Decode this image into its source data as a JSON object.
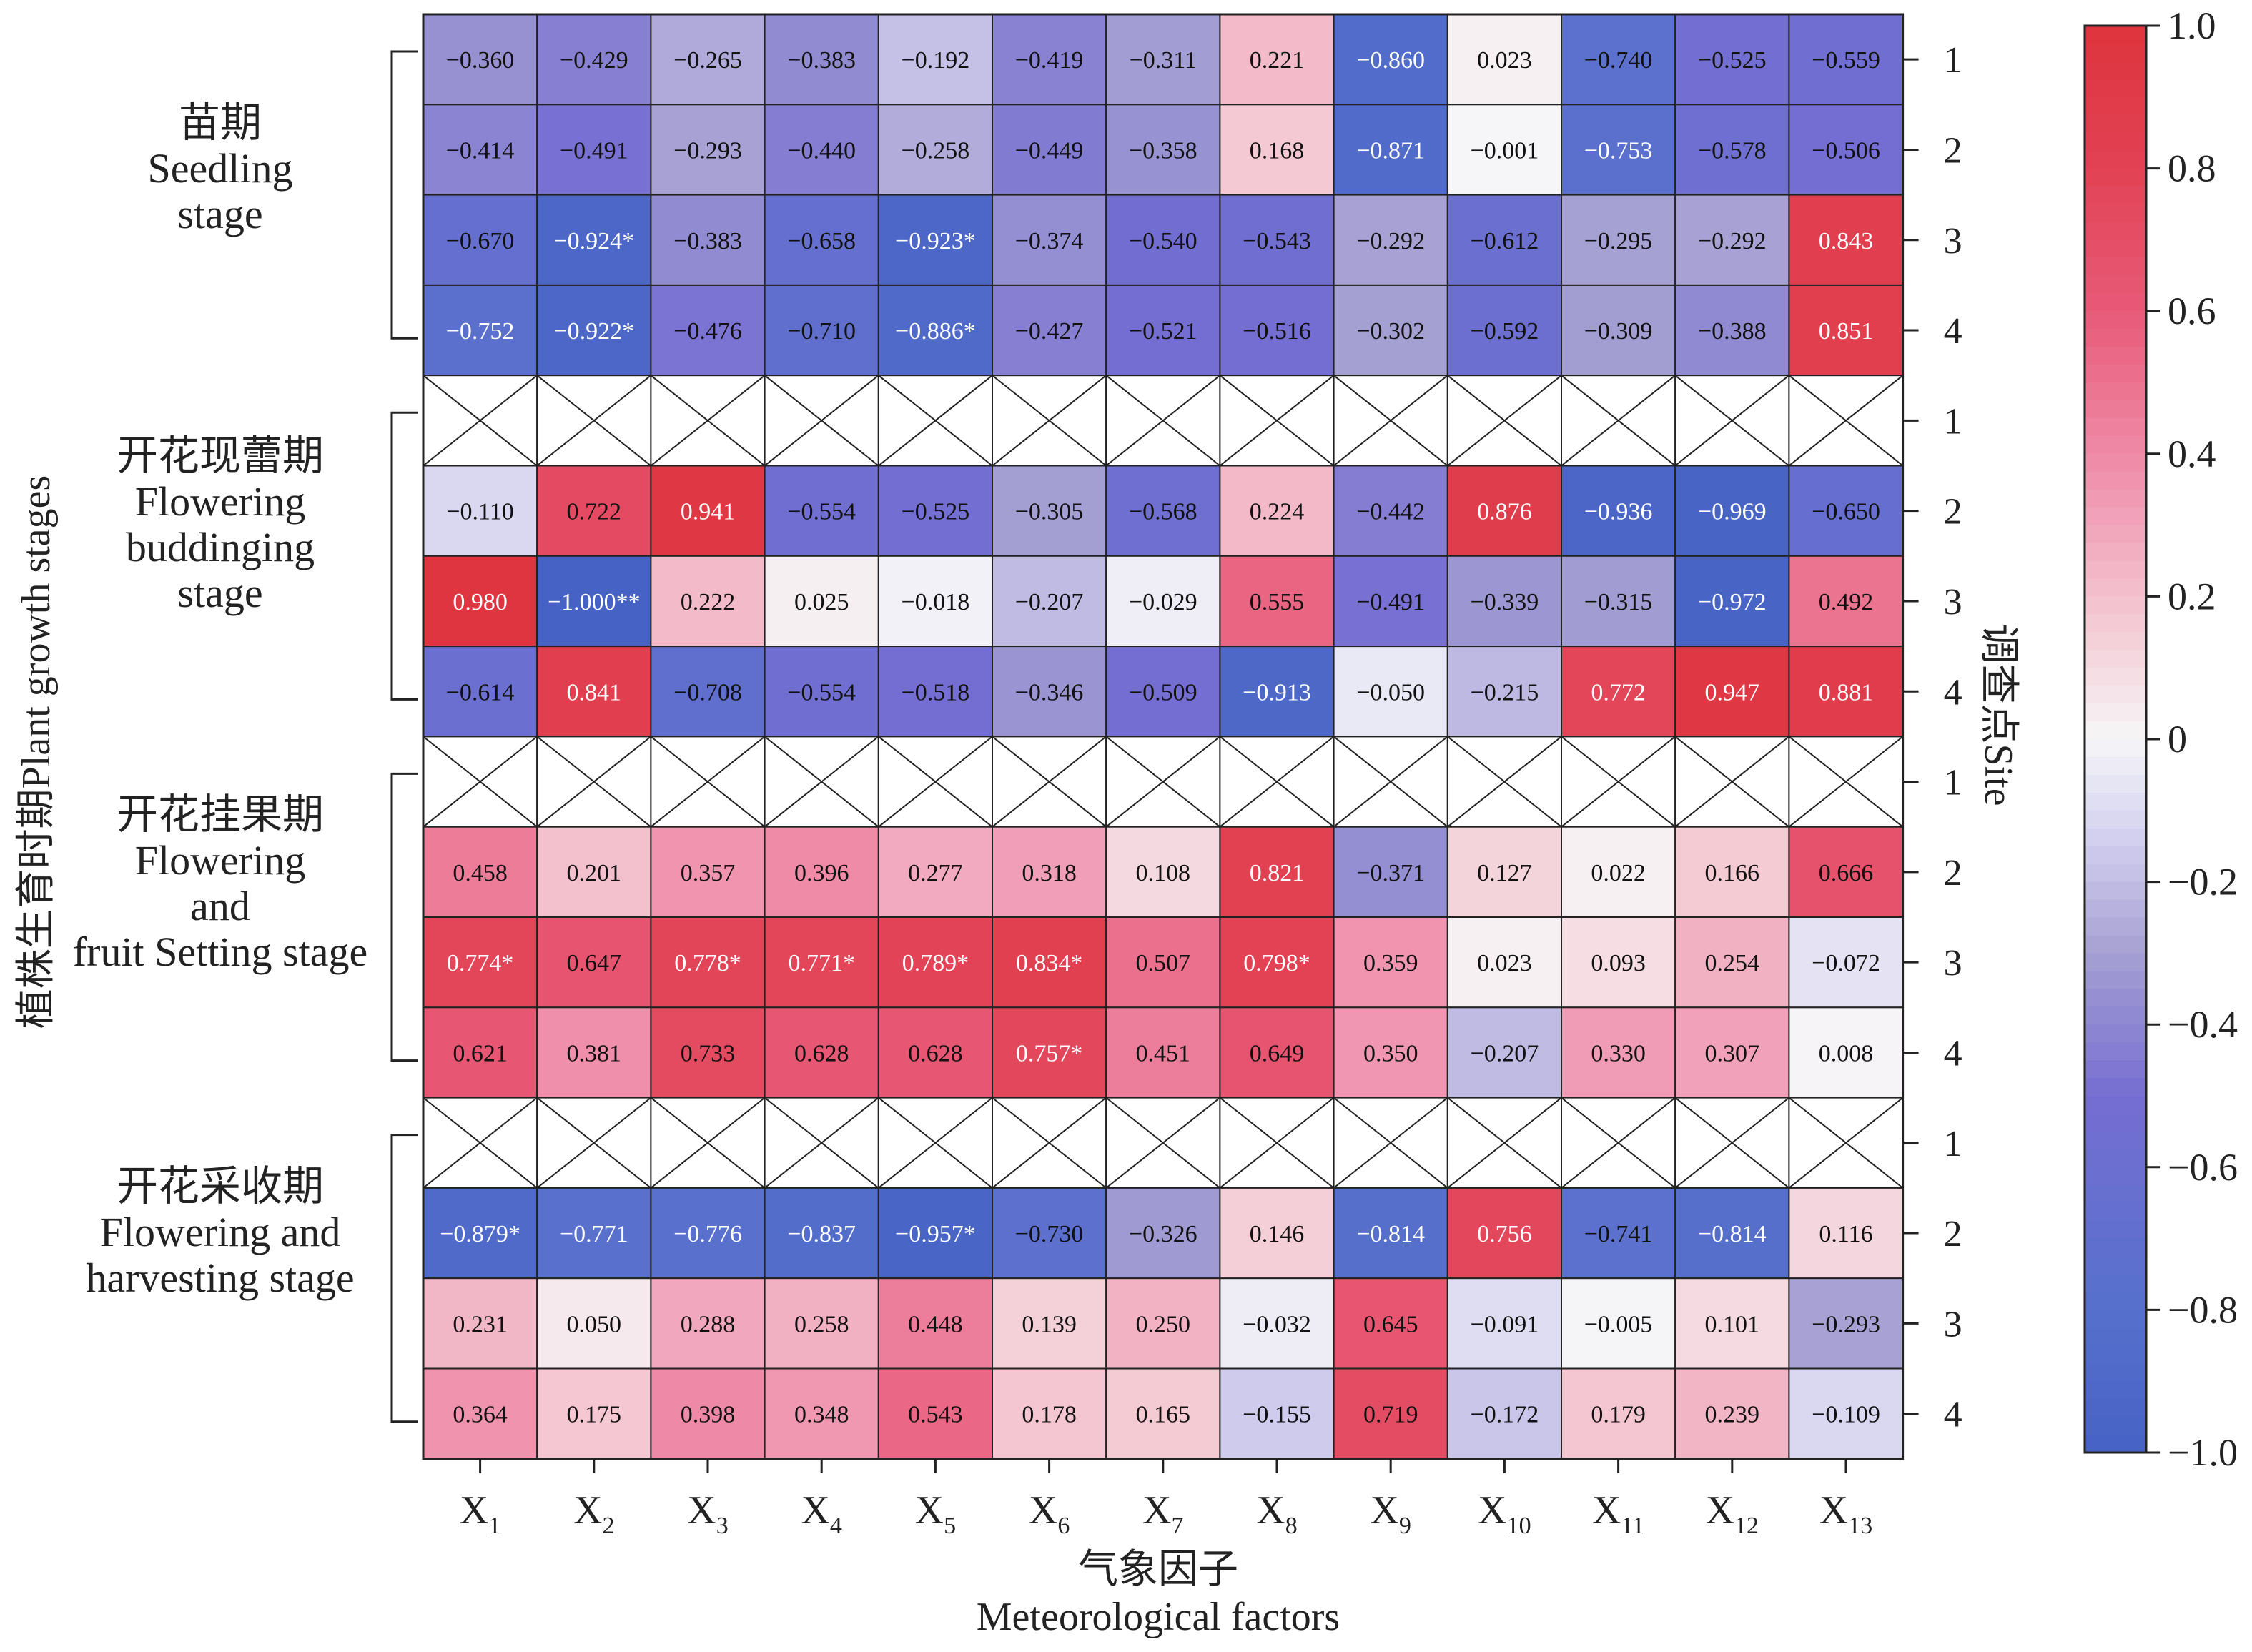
{
  "chart_data": {
    "type": "heatmap",
    "xlabel_cn": "气象因子",
    "xlabel_en": "Meteorological factors",
    "ylabel": "植株生育时期Plant growth stages",
    "site_label": "调查点Site",
    "colorbar": {
      "range": [
        -1.0,
        1.0
      ],
      "ticks": [
        "1.0",
        "0.8",
        "0.6",
        "0.4",
        "0.2",
        "0",
        "−0.2",
        "−0.4",
        "−0.6",
        "−0.8",
        "−1.0"
      ],
      "tick_values": [
        1.0,
        0.8,
        0.6,
        0.4,
        0.2,
        0,
        -0.2,
        -0.4,
        -0.6,
        -0.8,
        -1.0
      ]
    },
    "factors": [
      "X1",
      "X2",
      "X3",
      "X4",
      "X5",
      "X6",
      "X7",
      "X8",
      "X9",
      "X10",
      "X11",
      "X12",
      "X13"
    ],
    "factor_base": "X",
    "factor_subs": [
      "1",
      "2",
      "3",
      "4",
      "5",
      "6",
      "7",
      "8",
      "9",
      "10",
      "11",
      "12",
      "13"
    ],
    "stages": [
      {
        "name_cn": "苗期",
        "name_en_lines": [
          "Seedling",
          "stage"
        ],
        "rows": [
          {
            "site": "1",
            "values": [
              -0.36,
              -0.429,
              -0.265,
              -0.383,
              -0.192,
              -0.419,
              -0.311,
              0.221,
              -0.86,
              0.023,
              -0.74,
              -0.525,
              -0.559
            ],
            "labels": [
              "−0.360",
              "−0.429",
              "−0.265",
              "−0.383",
              "−0.192",
              "−0.419",
              "−0.311",
              "0.221",
              "−0.860",
              "0.023",
              "−0.740",
              "−0.525",
              "−0.559"
            ]
          },
          {
            "site": "2",
            "values": [
              -0.414,
              -0.491,
              -0.293,
              -0.44,
              -0.258,
              -0.449,
              -0.358,
              0.168,
              -0.871,
              -0.001,
              -0.753,
              -0.578,
              -0.506
            ],
            "labels": [
              "−0.414",
              "−0.491",
              "−0.293",
              "−0.440",
              "−0.258",
              "−0.449",
              "−0.358",
              "0.168",
              "−0.871",
              "−0.001",
              "−0.753",
              "−0.578",
              "−0.506"
            ]
          },
          {
            "site": "3",
            "values": [
              -0.67,
              -0.924,
              -0.383,
              -0.658,
              -0.923,
              -0.374,
              -0.54,
              -0.543,
              -0.292,
              -0.612,
              -0.295,
              -0.292,
              0.843
            ],
            "labels": [
              "−0.670",
              "−0.924*",
              "−0.383",
              "−0.658",
              "−0.923*",
              "−0.374",
              "−0.540",
              "−0.543",
              "−0.292",
              "−0.612",
              "−0.295",
              "−0.292",
              "0.843"
            ]
          },
          {
            "site": "4",
            "values": [
              -0.752,
              -0.922,
              -0.476,
              -0.71,
              -0.886,
              -0.427,
              -0.521,
              -0.516,
              -0.302,
              -0.592,
              -0.309,
              -0.388,
              0.851
            ],
            "labels": [
              "−0.752",
              "−0.922*",
              "−0.476",
              "−0.710",
              "−0.886*",
              "−0.427",
              "−0.521",
              "−0.516",
              "−0.302",
              "−0.592",
              "−0.309",
              "−0.388",
              "0.851"
            ]
          }
        ]
      },
      {
        "name_cn": "开花现蕾期",
        "name_en_lines": [
          "Flowering",
          "buddinging",
          "stage"
        ],
        "rows": [
          {
            "site": "1",
            "values": null,
            "labels": null
          },
          {
            "site": "2",
            "values": [
              -0.11,
              0.722,
              0.941,
              -0.554,
              -0.525,
              -0.305,
              -0.568,
              0.224,
              -0.442,
              0.876,
              -0.936,
              -0.969,
              -0.65
            ],
            "labels": [
              "−0.110",
              "0.722",
              "0.941",
              "−0.554",
              "−0.525",
              "−0.305",
              "−0.568",
              "0.224",
              "−0.442",
              "0.876",
              "−0.936",
              "−0.969",
              "−0.650"
            ]
          },
          {
            "site": "3",
            "values": [
              0.98,
              -1.0,
              0.222,
              0.025,
              -0.018,
              -0.207,
              -0.029,
              0.555,
              -0.491,
              -0.339,
              -0.315,
              -0.972,
              0.492
            ],
            "labels": [
              "0.980",
              "−1.000**",
              "0.222",
              "0.025",
              "−0.018",
              "−0.207",
              "−0.029",
              "0.555",
              "−0.491",
              "−0.339",
              "−0.315",
              "−0.972",
              "0.492"
            ]
          },
          {
            "site": "4",
            "values": [
              -0.614,
              0.841,
              -0.708,
              -0.554,
              -0.518,
              -0.346,
              -0.509,
              -0.913,
              -0.05,
              -0.215,
              0.772,
              0.947,
              0.881
            ],
            "labels": [
              "−0.614",
              "0.841",
              "−0.708",
              "−0.554",
              "−0.518",
              "−0.346",
              "−0.509",
              "−0.913",
              "−0.050",
              "−0.215",
              "0.772",
              "0.947",
              "0.881"
            ]
          }
        ]
      },
      {
        "name_cn": "开花挂果期",
        "name_en_lines": [
          "Flowering",
          "and",
          "fruit Setting stage"
        ],
        "rows": [
          {
            "site": "1",
            "values": null,
            "labels": null
          },
          {
            "site": "2",
            "values": [
              0.458,
              0.201,
              0.357,
              0.396,
              0.277,
              0.318,
              0.108,
              0.821,
              -0.371,
              0.127,
              0.022,
              0.166,
              0.666
            ],
            "labels": [
              "0.458",
              "0.201",
              "0.357",
              "0.396",
              "0.277",
              "0.318",
              "0.108",
              "0.821",
              "−0.371",
              "0.127",
              "0.022",
              "0.166",
              "0.666"
            ]
          },
          {
            "site": "3",
            "values": [
              0.774,
              0.647,
              0.778,
              0.771,
              0.789,
              0.834,
              0.507,
              0.798,
              0.359,
              0.023,
              0.093,
              0.254,
              -0.072
            ],
            "labels": [
              "0.774*",
              "0.647",
              "0.778*",
              "0.771*",
              "0.789*",
              "0.834*",
              "0.507",
              "0.798*",
              "0.359",
              "0.023",
              "0.093",
              "0.254",
              "−0.072"
            ]
          },
          {
            "site": "4",
            "values": [
              0.621,
              0.381,
              0.733,
              0.628,
              0.628,
              0.757,
              0.451,
              0.649,
              0.35,
              -0.207,
              0.33,
              0.307,
              0.008
            ],
            "labels": [
              "0.621",
              "0.381",
              "0.733",
              "0.628",
              "0.628",
              "0.757*",
              "0.451",
              "0.649",
              "0.350",
              "−0.207",
              "0.330",
              "0.307",
              "0.008"
            ]
          }
        ]
      },
      {
        "name_cn": "开花采收期",
        "name_en_lines": [
          "Flowering and",
          "harvesting stage"
        ],
        "rows": [
          {
            "site": "1",
            "values": null,
            "labels": null
          },
          {
            "site": "2",
            "values": [
              -0.879,
              -0.771,
              -0.776,
              -0.837,
              -0.957,
              -0.73,
              -0.326,
              0.146,
              -0.814,
              0.756,
              -0.741,
              -0.814,
              0.116
            ],
            "labels": [
              "−0.879*",
              "−0.771",
              "−0.776",
              "−0.837",
              "−0.957*",
              "−0.730",
              "−0.326",
              "0.146",
              "−0.814",
              "0.756",
              "−0.741",
              "−0.814",
              "0.116"
            ]
          },
          {
            "site": "3",
            "values": [
              0.231,
              0.05,
              0.288,
              0.258,
              0.448,
              0.139,
              0.25,
              -0.032,
              0.645,
              -0.091,
              -0.005,
              0.101,
              -0.293
            ],
            "labels": [
              "0.231",
              "0.050",
              "0.288",
              "0.258",
              "0.448",
              "0.139",
              "0.250",
              "−0.032",
              "0.645",
              "−0.091",
              "−0.005",
              "0.101",
              "−0.293"
            ]
          },
          {
            "site": "4",
            "values": [
              0.364,
              0.175,
              0.398,
              0.348,
              0.543,
              0.178,
              0.165,
              -0.155,
              0.719,
              -0.172,
              0.179,
              0.239,
              -0.109
            ],
            "labels": [
              "0.364",
              "0.175",
              "0.398",
              "0.348",
              "0.543",
              "0.178",
              "0.165",
              "−0.155",
              "0.719",
              "−0.172",
              "0.179",
              "0.239",
              "−0.109"
            ]
          }
        ]
      }
    ]
  }
}
